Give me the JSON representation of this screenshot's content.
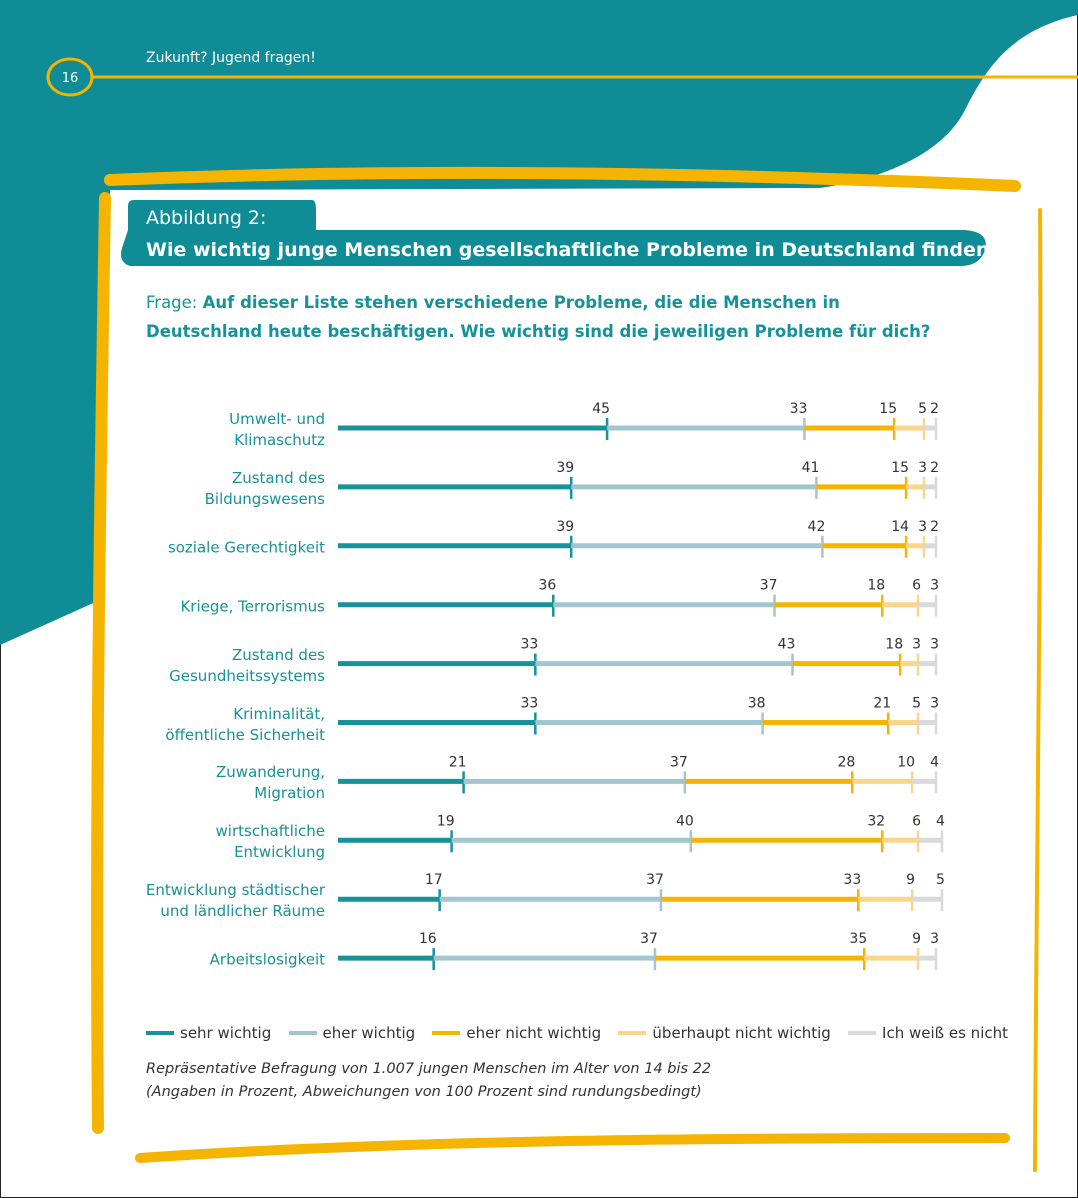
{
  "header": {
    "title": "Zukunft? Jugend fragen!",
    "page": 16
  },
  "chart_data": {
    "type": "stacked_barh",
    "figure_label": "Abbildung 2:",
    "title": "Wie wichtig junge Menschen gesellschaftliche Probleme in Deutschland finden",
    "question_label": "Frage:",
    "question": "Auf dieser Liste stehen verschiedene Probleme, die die Menschen in Deutschland heute beschäftigen. Wie wichtig sind die jeweiligen Probleme für dich?",
    "categories": [
      "Umwelt- und\nKlimaschutz",
      "Zustand des\nBildungswesens",
      "soziale Gerechtigkeit",
      "Kriege, Terrorismus",
      "Zustand des\nGesundheitssystems",
      "Kriminalität,\nöffentliche Sicherheit",
      "Zuwanderung,\nMigration",
      "wirtschaftliche\nEntwicklung",
      "Entwicklung städtischer\nund ländlicher Räume",
      "Arbeitslosigkeit"
    ],
    "series": [
      {
        "name": "sehr wichtig",
        "color": "#17919a",
        "values": [
          45,
          39,
          39,
          36,
          33,
          33,
          21,
          19,
          17,
          16
        ]
      },
      {
        "name": "eher wichtig",
        "color": "#a2c6cf",
        "values": [
          33,
          41,
          42,
          37,
          43,
          38,
          37,
          40,
          37,
          37
        ]
      },
      {
        "name": "eher nicht wichtig",
        "color": "#f4b400",
        "values": [
          15,
          15,
          14,
          18,
          18,
          21,
          28,
          32,
          33,
          35
        ]
      },
      {
        "name": "überhaupt nicht wichtig",
        "color": "#fbd58a",
        "values": [
          5,
          3,
          3,
          6,
          3,
          5,
          10,
          6,
          9,
          9
        ]
      },
      {
        "name": "Ich weiß es nicht",
        "color": "#d9d9d9",
        "values": [
          2,
          2,
          2,
          3,
          3,
          3,
          4,
          4,
          5,
          3
        ]
      }
    ],
    "xlim": [
      0,
      100
    ],
    "legend": "bottom",
    "notes": [
      "Repräsentative Befragung von 1.007 jungen Menschen im Alter von 14 bis 22",
      "(Angaben in Prozent, Abweichungen von 100 Prozent sind rundungsbedingt)"
    ]
  }
}
